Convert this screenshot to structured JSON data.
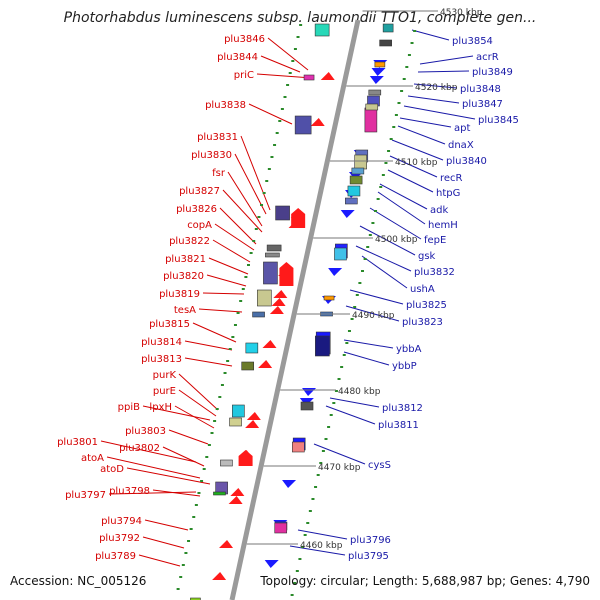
{
  "title": "Photorhabdus luminescens subsp. laumondii TTO1, complete gen...",
  "accession_text": "Accession: NC_005126",
  "summary_text": "Topology: circular; Length: 5,688,987 bp; Genes: 4,790",
  "colors": {
    "left_label": "#d40000",
    "right_label": "#1a1aa8",
    "forward_gene": "#ff1a1a",
    "reverse_gene": "#1a1aff",
    "axis": "#999999",
    "tick": "#2a8a2a"
  },
  "scale_labels": [
    "4530 kbp",
    "4520 kbp",
    "4510 kbp",
    "4500 kbp",
    "4490 kbp",
    "4480 kbp",
    "4470 kbp",
    "4460 kbp"
  ],
  "left_labels": [
    "plu3846",
    "plu3844",
    "priC",
    "plu3838",
    "plu3831",
    "plu3830",
    "fsr",
    "plu3827",
    "plu3826",
    "copA",
    "plu3822",
    "plu3821",
    "plu3820",
    "plu3819",
    "tesA",
    "plu3815",
    "plu3814",
    "plu3813",
    "purK",
    "purE",
    "ppiB",
    "lpxH",
    "plu3803",
    "plu3801",
    "plu3802",
    "atoA",
    "atoD",
    "plu3797",
    "plu3798",
    "plu3794",
    "plu3792",
    "plu3789"
  ],
  "right_labels": [
    "plu3854",
    "acrR",
    "plu3849",
    "plu3848",
    "plu3847",
    "plu3845",
    "apt",
    "dnaX",
    "plu3840",
    "recR",
    "htpG",
    "adk",
    "hemH",
    "fepE",
    "gsk",
    "plu3832",
    "ushA",
    "plu3825",
    "plu3823",
    "ybbA",
    "ybbP",
    "plu3812",
    "plu3811",
    "cysS",
    "plu3796",
    "plu3795"
  ]
}
